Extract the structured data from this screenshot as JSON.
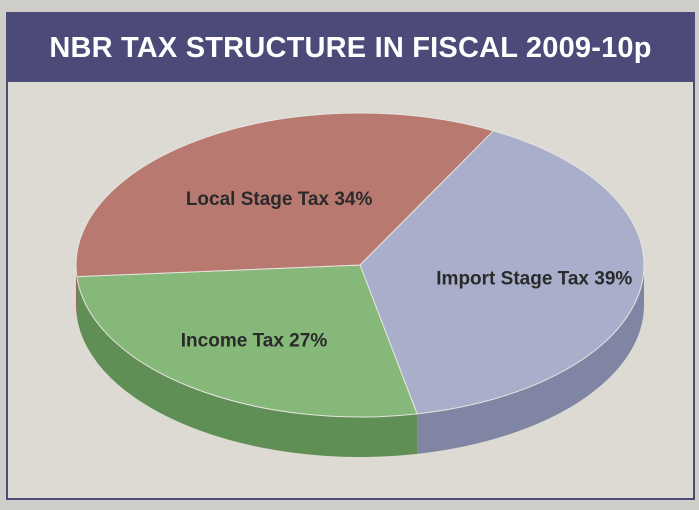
{
  "title": "NBR TAX STRUCTURE IN FISCAL 2009-10p",
  "colors": {
    "frame": "#4b4a78",
    "background": "#dcdad3",
    "import": "#a9afcb",
    "income": "#86b87a",
    "local": "#b87a70"
  },
  "chart_data": {
    "type": "pie",
    "title": "NBR TAX STRUCTURE IN FISCAL 2009-10p",
    "slices": [
      {
        "name": "Import Stage Tax",
        "value": 39,
        "label": "Import Stage Tax 39%",
        "color": "#a9afcb",
        "side_color": "#7f85a3"
      },
      {
        "name": "Income Tax",
        "value": 27,
        "label": "Income Tax 27%",
        "color": "#86b87a",
        "side_color": "#5f8f55"
      },
      {
        "name": "Local Stage Tax",
        "value": 34,
        "label": "Local Stage Tax 34%",
        "color": "#b87a70",
        "side_color": "#8f564d"
      }
    ]
  }
}
